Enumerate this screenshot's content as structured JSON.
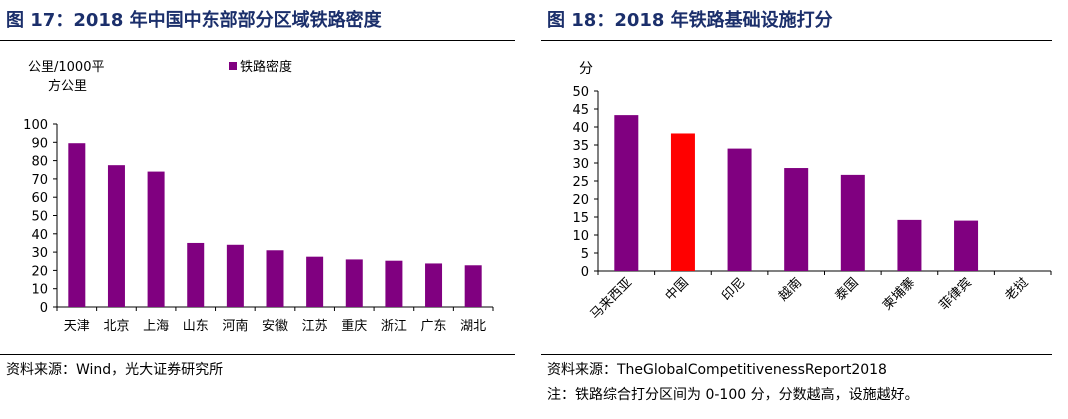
{
  "left": {
    "figure_title": "图 17：2018 年中国中东部部分区域铁路密度",
    "source": "资料来源：Wind，光大证券研究所",
    "chart_data": {
      "type": "bar",
      "title": "",
      "ylabel_lines": [
        "公里/1000平",
        "方公里"
      ],
      "xlabel": "",
      "ylim": [
        0,
        100
      ],
      "yticks": [
        0,
        10,
        20,
        30,
        40,
        50,
        60,
        70,
        80,
        90,
        100
      ],
      "categories": [
        "天津",
        "北京",
        "上海",
        "山东",
        "河南",
        "安徽",
        "江苏",
        "重庆",
        "浙江",
        "广东",
        "湖北"
      ],
      "series": [
        {
          "name": "铁路密度",
          "color": "#800080",
          "values": [
            89.5,
            77.5,
            74,
            35,
            34,
            31,
            27.5,
            26,
            25.3,
            23.8,
            22.8
          ]
        }
      ],
      "grid": false,
      "legend": "top"
    }
  },
  "right": {
    "figure_title": "图 18：2018 年铁路基础设施打分",
    "source": "资料来源：TheGlobalCompetitivenessReport2018",
    "note": "注：铁路综合打分区间为 0-100 分，分数越高，设施越好。",
    "chart_data": {
      "type": "bar",
      "title": "",
      "ylabel": "分",
      "xlabel": "",
      "ylim": [
        0,
        50
      ],
      "yticks": [
        0,
        5,
        10,
        15,
        20,
        25,
        30,
        35,
        40,
        45,
        50
      ],
      "categories": [
        "马来西亚",
        "中国",
        "印尼",
        "越南",
        "泰国",
        "柬埔寨",
        "菲律宾",
        "老挝"
      ],
      "values": [
        43.3,
        38.2,
        34,
        28.6,
        26.7,
        14.2,
        14,
        0
      ],
      "bar_color": "#800080",
      "highlight": {
        "category": "中国",
        "color": "#ff0000"
      },
      "grid": false,
      "legend": "none"
    }
  }
}
